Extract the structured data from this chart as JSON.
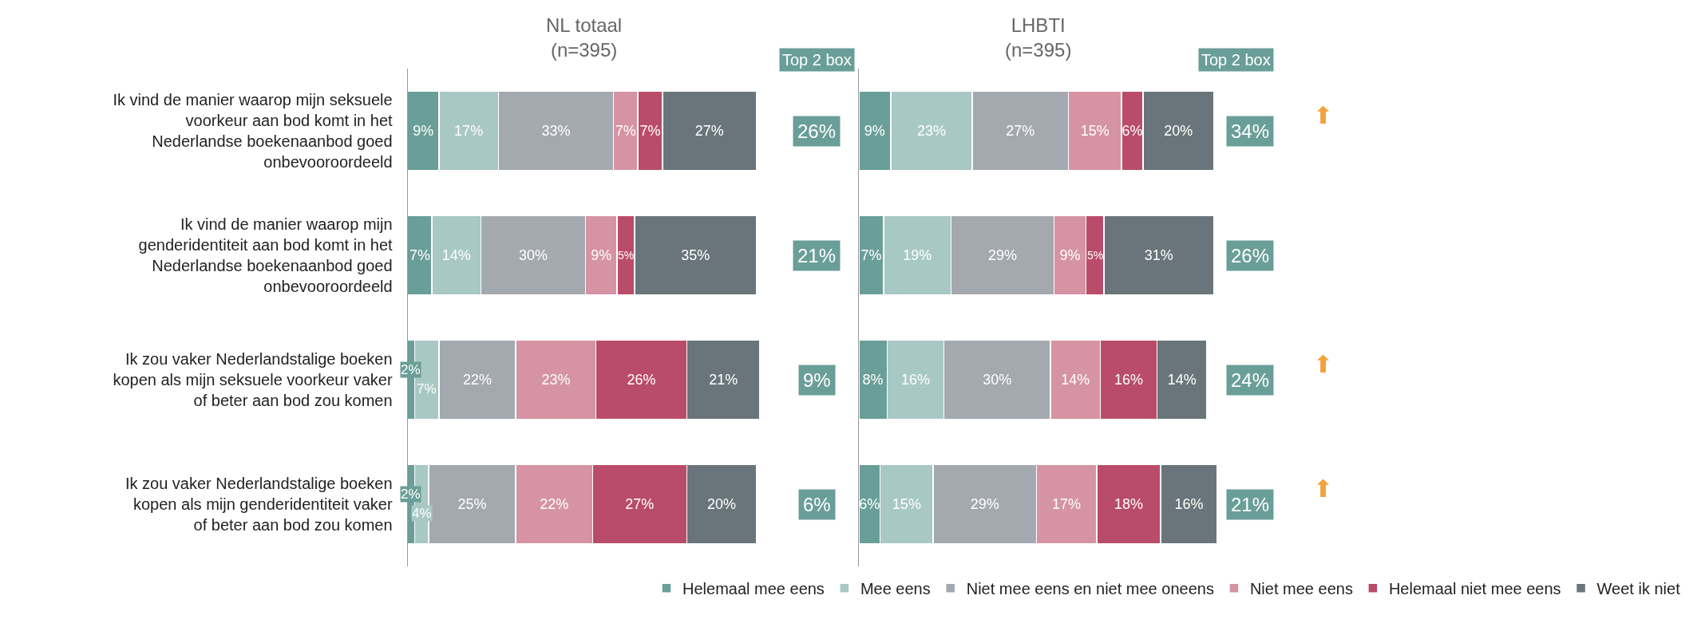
{
  "chart_data": [
    {
      "type": "bar",
      "orientation": "horizontal",
      "stacked": true,
      "title": "NL totaal",
      "subtitle": "(n=395)",
      "categories": [
        "Ik vind de manier waarop mijn seksuele voorkeur aan bod komt in het Nederlandse boekenaanbod goed onbevooroordeeld",
        "Ik vind de manier waarop mijn genderidentiteit aan bod komt in het Nederlandse boekenaanbod goed onbevooroordeeld",
        "Ik zou vaker Nederlandstalige boeken kopen als mijn seksuele voorkeur vaker of beter aan bod zou komen",
        "Ik zou vaker Nederlandstalige boeken kopen als mijn genderidentiteit vaker of beter aan bod zou komen"
      ],
      "xlim": [
        0,
        101
      ],
      "tick_labels": "y",
      "legend": "bottom right",
      "series": [
        {
          "name": "Helemaal mee eens",
          "color": "#6a9e98",
          "values": [
            9,
            7,
            2,
            2
          ],
          "value_labels": [
            "9%",
            "7%",
            "2%",
            "2%"
          ]
        },
        {
          "name": "Mee eens",
          "color": "#a8c8c4",
          "values": [
            17,
            14,
            7,
            4
          ],
          "value_labels": [
            "17%",
            "14%",
            "7%",
            "4%"
          ]
        },
        {
          "name": "Niet mee eens en niet mee oneens",
          "color": "#a4a9b0",
          "values": [
            33,
            30,
            22,
            25
          ],
          "value_labels": [
            "33%",
            "30%",
            "22%",
            "25%"
          ]
        },
        {
          "name": "Niet mee eens",
          "color": "#d593a3",
          "values": [
            7,
            9,
            23,
            22
          ],
          "value_labels": [
            "7%",
            "9%",
            "23%",
            "22%"
          ]
        },
        {
          "name": "Helemaal niet mee eens",
          "color": "#b94c69",
          "values": [
            7,
            5,
            26,
            27
          ],
          "value_labels": [
            "7%",
            "5%",
            "26%",
            "27%"
          ]
        },
        {
          "name": "Weet ik niet",
          "color": "#6a757b",
          "values": [
            27,
            35,
            21,
            20
          ],
          "value_labels": [
            "27%",
            "35%",
            "21%",
            "20%"
          ]
        }
      ],
      "annotations": [
        "Top 2 box",
        "26%",
        "21%",
        "9%",
        "6%"
      ]
    },
    {
      "type": "bar",
      "orientation": "horizontal",
      "stacked": true,
      "title": "LHBTI",
      "subtitle": "(n=395)",
      "categories": [
        null,
        null,
        null,
        null
      ],
      "xlim": [
        0,
        101
      ],
      "tick_labels": false,
      "series": [
        {
          "color": "#6a9e98",
          "values": [
            9,
            7,
            8,
            6
          ],
          "value_labels": [
            "9%",
            "7%",
            "8%",
            "6%"
          ]
        },
        {
          "color": "#a8c8c4",
          "values": [
            23,
            19,
            16,
            15
          ],
          "value_labels": [
            "23%",
            "19%",
            "16%",
            "15%"
          ]
        },
        {
          "color": "#a4a9b0",
          "values": [
            27,
            29,
            30,
            29
          ],
          "value_labels": [
            "27%",
            "29%",
            "30%",
            "29%"
          ]
        },
        {
          "color": "#d593a3",
          "values": [
            15,
            9,
            14,
            17
          ],
          "value_labels": [
            "15%",
            "9%",
            "14%",
            "17%"
          ]
        },
        {
          "color": "#b94c69",
          "values": [
            6,
            5,
            16,
            18
          ],
          "value_labels": [
            "6%",
            "5%",
            "16%",
            "18%"
          ]
        },
        {
          "color": "#6a757b",
          "values": [
            20,
            31,
            14,
            16
          ],
          "value_labels": [
            "20%",
            "31%",
            "14%",
            "16%"
          ]
        }
      ],
      "annotations": [
        "Top 2 box",
        "34% ⬆",
        "26%",
        "24% ⬆",
        "21% ⬆"
      ]
    }
  ]
}
